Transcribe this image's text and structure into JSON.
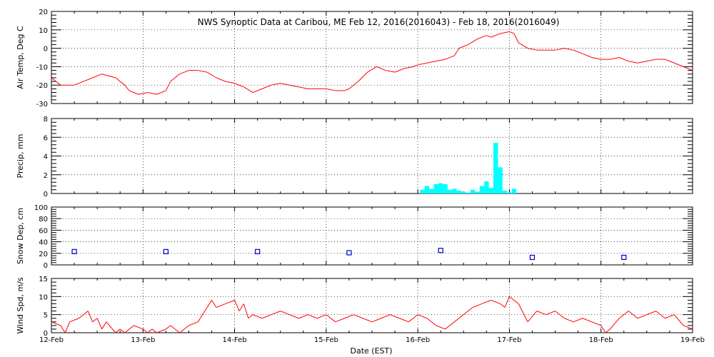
{
  "chart_data": {
    "title": "NWS Synoptic Data at Caribou, ME   Feb 12, 2016(2016043) - Feb 18, 2016(2016049)",
    "xlabel": "Date (EST)",
    "x_range_days": [
      0,
      7
    ],
    "x_tick_labels": [
      "12-Feb",
      "13-Feb",
      "14-Feb",
      "15-Feb",
      "16-Feb",
      "17-Feb",
      "18-Feb",
      "19-Feb"
    ],
    "grid": true,
    "colors": {
      "temp": "#ff0000",
      "precip": "#00ffff",
      "snow": "#0000cc",
      "wind": "#ff0000"
    },
    "panels": [
      {
        "id": "temp",
        "type": "line",
        "ylabel": "Air Temp, Deg C",
        "ylim": [
          -30,
          20
        ],
        "yticks": [
          -30,
          -20,
          -10,
          0,
          10,
          20
        ],
        "x": [
          0,
          0.1,
          0.25,
          0.35,
          0.45,
          0.55,
          0.7,
          0.8,
          0.85,
          0.95,
          1.05,
          1.15,
          1.25,
          1.3,
          1.4,
          1.5,
          1.6,
          1.7,
          1.8,
          1.9,
          2.0,
          2.1,
          2.2,
          2.3,
          2.4,
          2.5,
          2.6,
          2.7,
          2.8,
          2.9,
          3.0,
          3.1,
          3.2,
          3.25,
          3.35,
          3.45,
          3.55,
          3.65,
          3.75,
          3.85,
          3.95,
          4.0,
          4.1,
          4.2,
          4.3,
          4.4,
          4.45,
          4.55,
          4.65,
          4.75,
          4.8,
          4.9,
          5.0,
          5.05,
          5.1,
          5.2,
          5.3,
          5.4,
          5.5,
          5.6,
          5.7,
          5.8,
          5.9,
          6.0,
          6.1,
          6.2,
          6.3,
          6.4,
          6.5,
          6.6,
          6.7,
          6.8,
          6.9,
          7.0
        ],
        "values": [
          -16,
          -20,
          -20,
          -18,
          -16,
          -14,
          -16,
          -20,
          -23,
          -25,
          -24,
          -25,
          -23,
          -18,
          -14,
          -12,
          -12,
          -13,
          -16,
          -18,
          -19,
          -21,
          -24,
          -22,
          -20,
          -19,
          -20,
          -21,
          -22,
          -22,
          -22,
          -23,
          -23,
          -22,
          -18,
          -13,
          -10,
          -12,
          -13,
          -11,
          -10,
          -9,
          -8,
          -7,
          -6,
          -4,
          0,
          2,
          5,
          7,
          6,
          8,
          9,
          8,
          3,
          0,
          -1,
          -1,
          -1,
          0,
          -1,
          -3,
          -5,
          -6,
          -6,
          -5,
          -7,
          -8,
          -7,
          -6,
          -6,
          -8,
          -10,
          -12
        ]
      },
      {
        "id": "precip",
        "type": "bar",
        "ylabel": "Precip, mm",
        "ylim": [
          0,
          8
        ],
        "yticks": [
          0,
          2,
          4,
          6,
          8
        ],
        "x": [
          4.05,
          4.1,
          4.15,
          4.2,
          4.25,
          4.3,
          4.35,
          4.4,
          4.45,
          4.5,
          4.55,
          4.6,
          4.65,
          4.7,
          4.75,
          4.8,
          4.85,
          4.9,
          4.95,
          5.0,
          5.05
        ],
        "values": [
          0.4,
          0.8,
          0.5,
          1.0,
          1.1,
          1.0,
          0.4,
          0.5,
          0.3,
          0.2,
          0.1,
          0.4,
          0.2,
          0.8,
          1.3,
          0.6,
          5.4,
          2.8,
          0.3,
          0.1,
          0.5
        ]
      },
      {
        "id": "snow",
        "type": "scatter",
        "ylabel": "Snow Dep, cm",
        "ylim": [
          0,
          100
        ],
        "yticks": [
          0,
          20,
          40,
          60,
          80,
          100
        ],
        "x": [
          0.25,
          1.25,
          2.25,
          3.25,
          4.25,
          5.25,
          6.25
        ],
        "values": [
          23,
          23,
          23,
          21,
          25,
          13,
          13
        ]
      },
      {
        "id": "wind",
        "type": "line",
        "ylabel": "Wind Spd, m/s",
        "ylim": [
          0,
          15
        ],
        "yticks": [
          0,
          5,
          10,
          15
        ],
        "x": [
          0,
          0.1,
          0.15,
          0.2,
          0.3,
          0.4,
          0.45,
          0.5,
          0.55,
          0.6,
          0.7,
          0.75,
          0.8,
          0.9,
          1.0,
          1.05,
          1.1,
          1.15,
          1.25,
          1.3,
          1.4,
          1.5,
          1.6,
          1.7,
          1.75,
          1.8,
          1.9,
          2.0,
          2.05,
          2.1,
          2.15,
          2.2,
          2.3,
          2.4,
          2.5,
          2.6,
          2.7,
          2.8,
          2.9,
          3.0,
          3.1,
          3.2,
          3.3,
          3.4,
          3.5,
          3.6,
          3.7,
          3.8,
          3.9,
          4.0,
          4.1,
          4.2,
          4.3,
          4.4,
          4.5,
          4.6,
          4.7,
          4.8,
          4.9,
          4.95,
          5.0,
          5.1,
          5.2,
          5.3,
          5.4,
          5.5,
          5.6,
          5.7,
          5.8,
          5.9,
          6.0,
          6.05,
          6.1,
          6.2,
          6.3,
          6.4,
          6.5,
          6.6,
          6.7,
          6.8,
          6.9,
          7.0
        ],
        "values": [
          3,
          2,
          0,
          3,
          4,
          6,
          3,
          4,
          1,
          3,
          0,
          1,
          0,
          2,
          1,
          0,
          1,
          0,
          1,
          2,
          0,
          2,
          3,
          7,
          9,
          7,
          8,
          9,
          6,
          8,
          4,
          5,
          4,
          5,
          6,
          5,
          4,
          5,
          4,
          5,
          3,
          4,
          5,
          4,
          3,
          4,
          5,
          4,
          3,
          5,
          4,
          2,
          1,
          3,
          5,
          7,
          8,
          9,
          8,
          7,
          10,
          8,
          3,
          6,
          5,
          6,
          4,
          3,
          4,
          3,
          2,
          0,
          1,
          4,
          6,
          4,
          5,
          6,
          4,
          5,
          2,
          1
        ]
      }
    ]
  }
}
